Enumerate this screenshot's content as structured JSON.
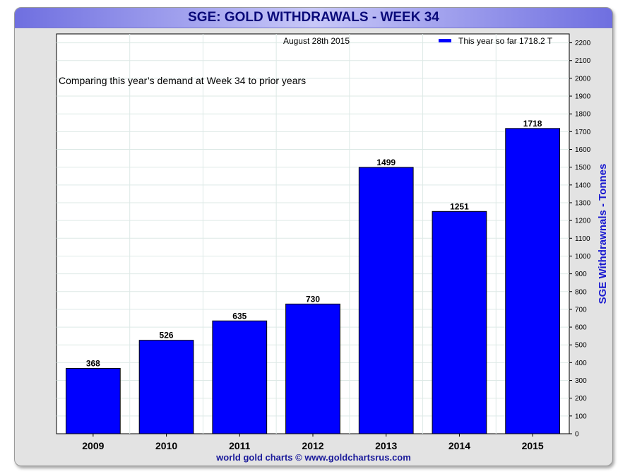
{
  "title": "SGE: GOLD WITHDRAWALS - WEEK 34",
  "footer": "world gold charts © www.goldchartsrus.com",
  "colors": {
    "bar": "#0000ff",
    "title_text": "#0a0a7a",
    "axis_label": "#1a1ad0",
    "footer": "#1a1a9a"
  },
  "chart_data": {
    "type": "bar",
    "date_label": "August 28th 2015",
    "annotation": "Comparing this year’s demand at Week 34 to prior years",
    "legend": {
      "entry": "This year so far 1718.2 T",
      "placement": "top-right"
    },
    "categories": [
      "2009",
      "2010",
      "2011",
      "2012",
      "2013",
      "2014",
      "2015"
    ],
    "values": [
      368,
      526,
      635,
      730,
      1499,
      1251,
      1718
    ],
    "data_labels": [
      "368",
      "526",
      "635",
      "730",
      "1499",
      "1251",
      "1718"
    ],
    "ylabel": "SGE Withdrawnals - Tonnes",
    "y_axis_side": "right",
    "ylim": [
      0,
      2250
    ],
    "yticks": [
      0,
      100,
      200,
      300,
      400,
      500,
      600,
      700,
      800,
      900,
      1000,
      1100,
      1200,
      1300,
      1400,
      1500,
      1600,
      1700,
      1800,
      1900,
      2000,
      2100,
      2200
    ],
    "grid": true
  }
}
